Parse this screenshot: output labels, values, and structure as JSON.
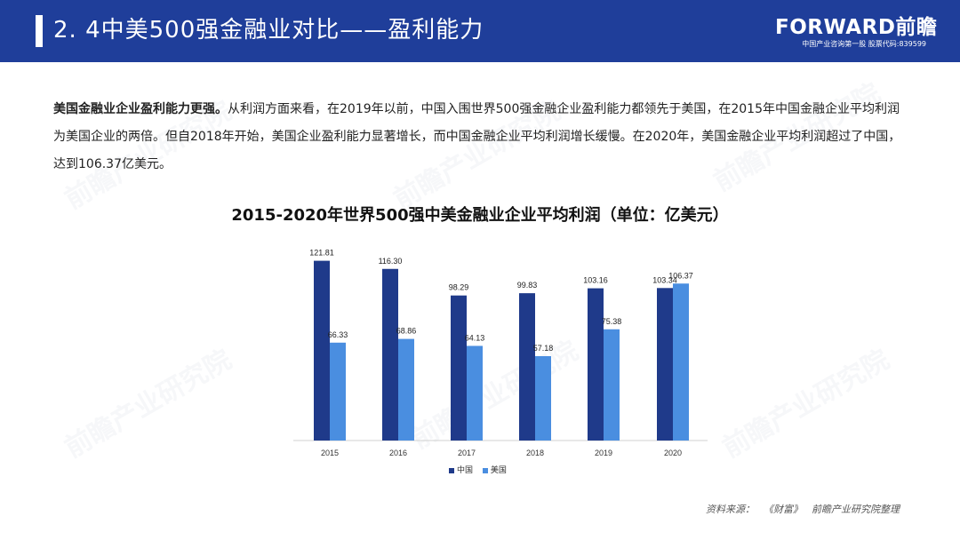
{
  "header": {
    "title": "2. 4中美500强金融业对比——盈利能力",
    "logo_brand": "FORWARD前瞻",
    "logo_tagline": "中国产业咨询第一股 股票代码:839599"
  },
  "intro": {
    "bold": "美国金融业企业盈利能力更强。",
    "text": "从利润方面来看，在2019年以前，中国入围世界500强金融企业盈利能力都领先于美国，在2015年中国金融企业平均利润为美国企业的两倍。但自2018年开始，美国企业盈利能力显著增长，而中国金融企业平均利润增长缓慢。在2020年，美国金融企业平均利润超过了中国，达到106.37亿美元。"
  },
  "chart_data": {
    "type": "bar",
    "title": "2015-2020年世界500强中美金融业企业平均利润（单位：亿美元）",
    "categories": [
      "2015",
      "2016",
      "2017",
      "2018",
      "2019",
      "2020"
    ],
    "series": [
      {
        "name": "中国",
        "color": "#1f3a8a",
        "values": [
          121.81,
          116.3,
          98.29,
          99.83,
          103.16,
          103.34
        ]
      },
      {
        "name": "美国",
        "color": "#4a8ee0",
        "values": [
          66.33,
          68.86,
          64.13,
          57.18,
          75.38,
          106.37
        ]
      }
    ],
    "ylim": [
      0,
      130
    ],
    "legend": "bottom"
  },
  "source": {
    "label": "资料来源：",
    "ref": "《财富》",
    "org": "前瞻产业研究院整理"
  },
  "watermark": "前瞻产业研究院"
}
